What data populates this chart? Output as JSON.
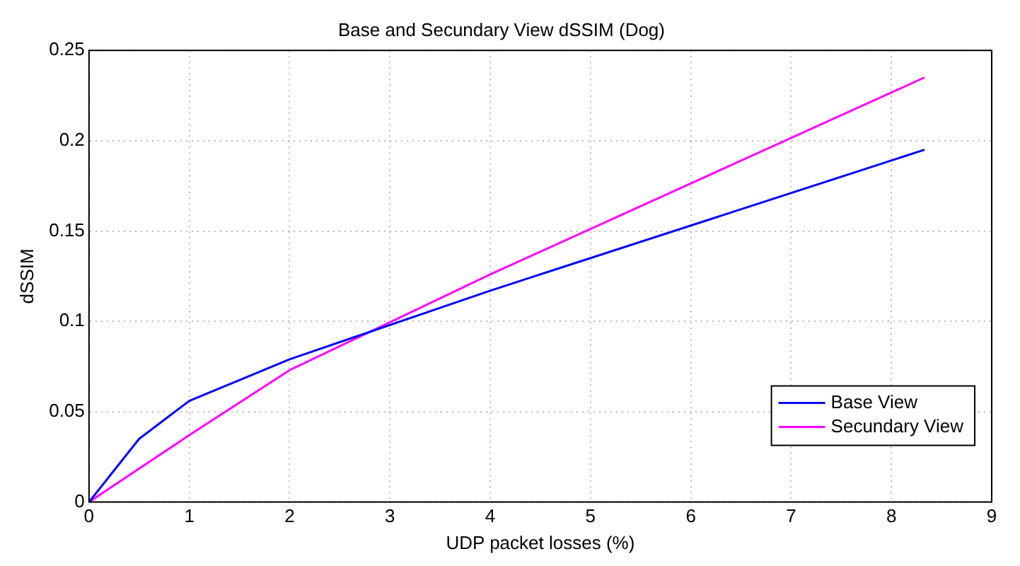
{
  "chart_data": {
    "type": "line",
    "title": "Base and Secundary View dSSIM (Dog)",
    "xlabel": "UDP packet losses (%)",
    "ylabel": "dSSIM",
    "series": [
      {
        "name": "Base View",
        "color": "#0000ff",
        "x": [
          0,
          0.5,
          1,
          2,
          4,
          8.33
        ],
        "values": [
          0,
          0.035,
          0.056,
          0.079,
          0.117,
          0.195
        ]
      },
      {
        "name": "Secundary View",
        "color": "#ff00ff",
        "x": [
          0,
          1,
          2,
          4,
          8.33
        ],
        "values": [
          0,
          0.037,
          0.073,
          0.126,
          0.235
        ]
      }
    ],
    "xlim": [
      0,
      9
    ],
    "xticks": [
      0,
      1,
      2,
      3,
      4,
      5,
      6,
      7,
      8,
      9
    ],
    "ylim": [
      0,
      0.25
    ],
    "yticks": [
      0,
      0.05,
      0.1,
      0.15,
      0.2,
      0.25
    ],
    "grid": true,
    "legend": "bottom right",
    "marker": "none",
    "line_style": "solid"
  }
}
